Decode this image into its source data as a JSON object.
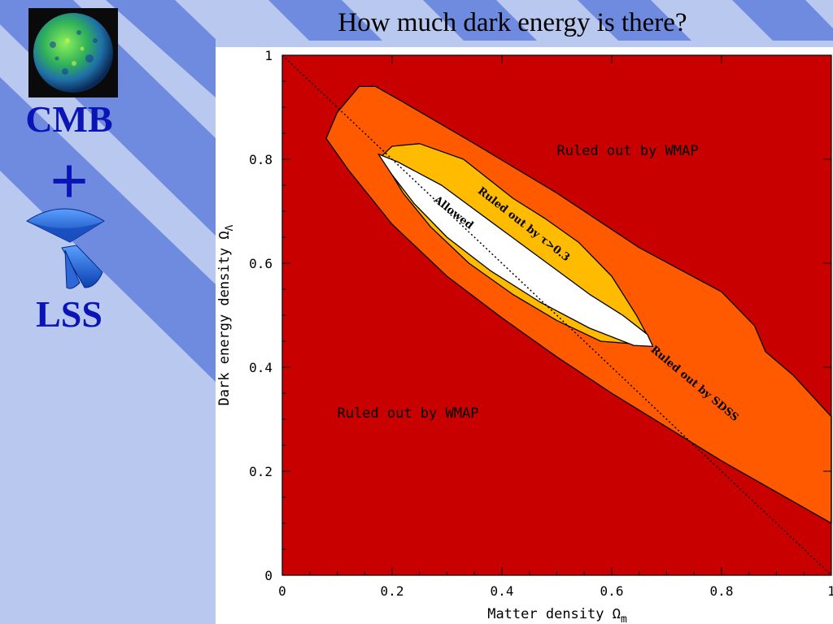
{
  "slide": {
    "title": "How much dark energy is there?",
    "cmb_label": "CMB",
    "plus": "+",
    "lss_label": "LSS"
  },
  "colors": {
    "background": "#b8c8ef",
    "stripe": "#6f8be0",
    "side_text": "#0b14b4",
    "ruled_wmap": "#c80000",
    "ruled_sdss": "#ff5a00",
    "ruled_tau": "#ffbb00",
    "allowed": "#ffffff"
  },
  "icons": {
    "cmb": "cmb-sphere-icon",
    "lss": "lss-survey-wedge-icon"
  },
  "chart_data": {
    "type": "area",
    "xlabel": "Matter density Ω",
    "xlabel_sub": "m",
    "ylabel": "Dark energy density Ω",
    "ylabel_sub": "Λ",
    "xlim": [
      0,
      1
    ],
    "ylim": [
      0,
      1
    ],
    "x_ticks": [
      "0",
      "0.2",
      "0.4",
      "0.6",
      "0.8",
      "1"
    ],
    "y_ticks": [
      "0",
      "0.2",
      "0.4",
      "0.6",
      "0.8",
      "1"
    ],
    "flat_universe_line": [
      [
        0,
        1
      ],
      [
        1,
        0
      ]
    ],
    "regions": [
      {
        "name": "Ruled out by SDSS",
        "fill": "#ff5a00",
        "points": [
          [
            0.08,
            0.84
          ],
          [
            0.1,
            0.89
          ],
          [
            0.14,
            0.94
          ],
          [
            0.17,
            0.94
          ],
          [
            0.22,
            0.91
          ],
          [
            0.35,
            0.83
          ],
          [
            0.5,
            0.735
          ],
          [
            0.65,
            0.63
          ],
          [
            0.8,
            0.545
          ],
          [
            0.86,
            0.48
          ],
          [
            0.88,
            0.43
          ],
          [
            0.93,
            0.385
          ],
          [
            1.0,
            0.305
          ],
          [
            1.0,
            0.1
          ],
          [
            0.9,
            0.16
          ],
          [
            0.8,
            0.22
          ],
          [
            0.7,
            0.285
          ],
          [
            0.6,
            0.35
          ],
          [
            0.5,
            0.42
          ],
          [
            0.4,
            0.495
          ],
          [
            0.3,
            0.575
          ],
          [
            0.2,
            0.675
          ],
          [
            0.12,
            0.78
          ]
        ]
      },
      {
        "name": "Ruled out by τ>0.3",
        "fill": "#ffbb00",
        "points": [
          [
            0.18,
            0.805
          ],
          [
            0.2,
            0.825
          ],
          [
            0.25,
            0.83
          ],
          [
            0.33,
            0.8
          ],
          [
            0.42,
            0.725
          ],
          [
            0.48,
            0.685
          ],
          [
            0.54,
            0.64
          ],
          [
            0.6,
            0.575
          ],
          [
            0.645,
            0.5
          ],
          [
            0.668,
            0.455
          ],
          [
            0.64,
            0.445
          ],
          [
            0.58,
            0.45
          ],
          [
            0.5,
            0.49
          ],
          [
            0.42,
            0.54
          ],
          [
            0.34,
            0.6
          ],
          [
            0.27,
            0.67
          ],
          [
            0.22,
            0.735
          ]
        ]
      },
      {
        "name": "Allowed",
        "fill": "#ffffff",
        "points": [
          [
            0.175,
            0.81
          ],
          [
            0.21,
            0.795
          ],
          [
            0.29,
            0.75
          ],
          [
            0.38,
            0.68
          ],
          [
            0.47,
            0.61
          ],
          [
            0.56,
            0.54
          ],
          [
            0.62,
            0.5
          ],
          [
            0.665,
            0.463
          ],
          [
            0.675,
            0.44
          ],
          [
            0.64,
            0.442
          ],
          [
            0.56,
            0.475
          ],
          [
            0.47,
            0.525
          ],
          [
            0.38,
            0.585
          ],
          [
            0.3,
            0.65
          ],
          [
            0.24,
            0.715
          ],
          [
            0.2,
            0.77
          ]
        ]
      }
    ],
    "annotations": [
      {
        "text": "Ruled out by WMAP",
        "x": 0.5,
        "y": 0.808,
        "angle": 0
      },
      {
        "text": "Ruled out by WMAP",
        "x": 0.1,
        "y": 0.303,
        "angle": 0
      },
      {
        "text": "Allowed",
        "x": 0.275,
        "y": 0.72,
        "angle": 38
      },
      {
        "text": "Ruled out by τ>0.3",
        "x": 0.355,
        "y": 0.737,
        "angle": 38
      },
      {
        "text": "Ruled out by SDSS",
        "x": 0.67,
        "y": 0.432,
        "angle": 40
      }
    ]
  }
}
